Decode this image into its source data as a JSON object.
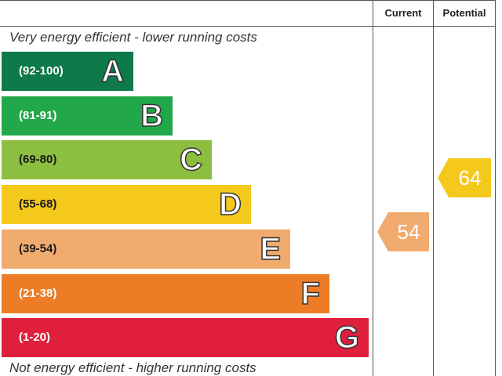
{
  "headers": {
    "current": "Current",
    "potential": "Potential"
  },
  "captions": {
    "top": "Very energy efficient - lower running costs",
    "bottom": "Not energy efficient - higher running costs"
  },
  "chart_data": {
    "type": "bar",
    "bands": [
      {
        "letter": "A",
        "range": "(92-100)",
        "color": "#0e7a4a",
        "text_color": "#ffffff"
      },
      {
        "letter": "B",
        "range": "(81-91)",
        "color": "#22a84b",
        "text_color": "#ffffff"
      },
      {
        "letter": "C",
        "range": "(69-80)",
        "color": "#8cbf3f",
        "text_color": "#1a1a1a"
      },
      {
        "letter": "D",
        "range": "(55-68)",
        "color": "#f5c81c",
        "text_color": "#1a1a1a"
      },
      {
        "letter": "E",
        "range": "(39-54)",
        "color": "#f2ab6e",
        "text_color": "#1a1a1a"
      },
      {
        "letter": "F",
        "range": "(21-38)",
        "color": "#ec7c25",
        "text_color": "#ffffff"
      },
      {
        "letter": "G",
        "range": "(1-20)",
        "color": "#e01f3d",
        "text_color": "#ffffff"
      }
    ],
    "current": {
      "value": 54,
      "band": "E",
      "color": "#f2ab6e"
    },
    "potential": {
      "value": 64,
      "band": "D",
      "color": "#f5c81c"
    }
  }
}
